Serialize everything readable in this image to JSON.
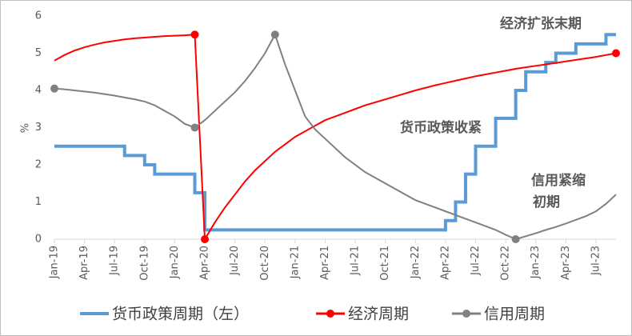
{
  "chart_data": {
    "type": "line",
    "categories": [
      "Jan-19",
      null,
      null,
      "Apr-19",
      null,
      null,
      "Jul-19",
      null,
      null,
      "Oct-19",
      null,
      null,
      "Jan-20",
      null,
      null,
      "Apr-20",
      null,
      null,
      "Jul-20",
      null,
      null,
      "Oct-20",
      null,
      null,
      "Jan-21",
      null,
      null,
      "Apr-21",
      null,
      null,
      "Jul-21",
      null,
      null,
      "Oct-21",
      null,
      null,
      "Jan-22",
      null,
      null,
      "Apr-22",
      null,
      null,
      "Jul-22",
      null,
      null,
      "Oct-22",
      null,
      null,
      "Jan-23",
      null,
      null,
      "Apr-23",
      null,
      null,
      "Jul-23",
      null,
      null
    ],
    "ylabel": "%",
    "ylim": [
      0,
      6
    ],
    "yticks": [
      0,
      1,
      2,
      3,
      4,
      5,
      6
    ],
    "series": [
      {
        "name": "货币政策周期（左）",
        "color": "#5b9bd5",
        "step": true,
        "values": [
          2.5,
          2.5,
          2.5,
          2.5,
          2.5,
          2.5,
          2.5,
          2.25,
          2.25,
          2.0,
          1.75,
          1.75,
          1.75,
          1.75,
          1.25,
          0.25,
          0.25,
          0.25,
          0.25,
          0.25,
          0.25,
          0.25,
          0.25,
          0.25,
          0.25,
          0.25,
          0.25,
          0.25,
          0.25,
          0.25,
          0.25,
          0.25,
          0.25,
          0.25,
          0.25,
          0.25,
          0.25,
          0.25,
          0.25,
          0.5,
          1.0,
          1.75,
          2.5,
          2.5,
          3.25,
          3.25,
          4.0,
          4.5,
          4.5,
          4.75,
          5.0,
          5.0,
          5.25,
          5.25,
          5.25,
          5.5,
          5.5
        ]
      },
      {
        "name": "经济周期",
        "color": "#ff0000",
        "markers": [
          14,
          15,
          56
        ],
        "values": [
          4.8,
          4.95,
          5.07,
          5.16,
          5.23,
          5.29,
          5.33,
          5.37,
          5.4,
          5.42,
          5.44,
          5.46,
          5.47,
          5.48,
          5.5,
          0,
          0.45,
          0.85,
          1.2,
          1.55,
          1.85,
          2.1,
          2.35,
          2.55,
          2.75,
          2.9,
          3.05,
          3.2,
          3.3,
          3.4,
          3.5,
          3.6,
          3.68,
          3.76,
          3.84,
          3.92,
          4.0,
          4.07,
          4.14,
          4.2,
          4.26,
          4.32,
          4.38,
          4.43,
          4.48,
          4.53,
          4.58,
          4.62,
          4.66,
          4.7,
          4.74,
          4.78,
          4.82,
          4.86,
          4.9,
          4.95,
          5.0
        ]
      },
      {
        "name": "信用周期",
        "color": "#808080",
        "markers": [
          0,
          14,
          22,
          46
        ],
        "values": [
          4.05,
          4.03,
          4.0,
          3.97,
          3.94,
          3.9,
          3.86,
          3.81,
          3.76,
          3.7,
          3.6,
          3.45,
          3.3,
          3.1,
          3.0,
          3.2,
          3.45,
          3.7,
          3.95,
          4.25,
          4.6,
          5.0,
          5.5,
          4.7,
          4.0,
          3.3,
          2.95,
          2.7,
          2.45,
          2.2,
          2.0,
          1.8,
          1.65,
          1.5,
          1.35,
          1.2,
          1.05,
          0.95,
          0.85,
          0.75,
          0.65,
          0.55,
          0.45,
          0.35,
          0.25,
          0.12,
          0,
          0.08,
          0.16,
          0.25,
          0.33,
          0.42,
          0.52,
          0.62,
          0.75,
          0.95,
          1.2
        ]
      }
    ],
    "annotations": [
      {
        "text": "经济扩张末期",
        "color": "#ff0000"
      },
      {
        "text": "货币政策收紧",
        "color": "#2e75b6"
      },
      {
        "text": "信用紧缩",
        "color": "#000000"
      },
      {
        "text": "初期",
        "color": "#000000"
      }
    ]
  }
}
